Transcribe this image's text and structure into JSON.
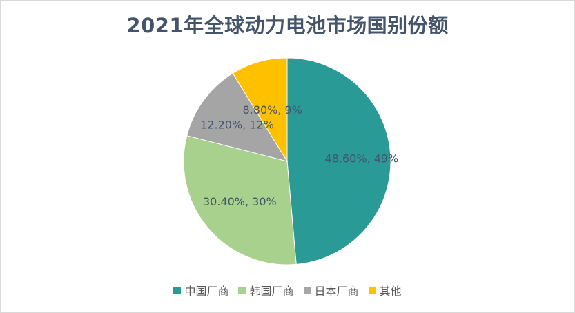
{
  "chart_data": {
    "type": "pie",
    "title": "2021年全球动力电池市场国别份额",
    "categories": [
      "中国厂商",
      "韩国厂商",
      "日本厂商",
      "其他"
    ],
    "values": [
      48.6,
      30.4,
      12.2,
      8.8
    ],
    "data_labels": [
      "48.60%, 49%",
      "30.40%, 30%",
      "12.20%, 12%",
      "8.80%, 9%"
    ],
    "colors": [
      "#2a9a96",
      "#a9d18e",
      "#a5a5a5",
      "#ffc000"
    ],
    "legend": "bottom"
  }
}
